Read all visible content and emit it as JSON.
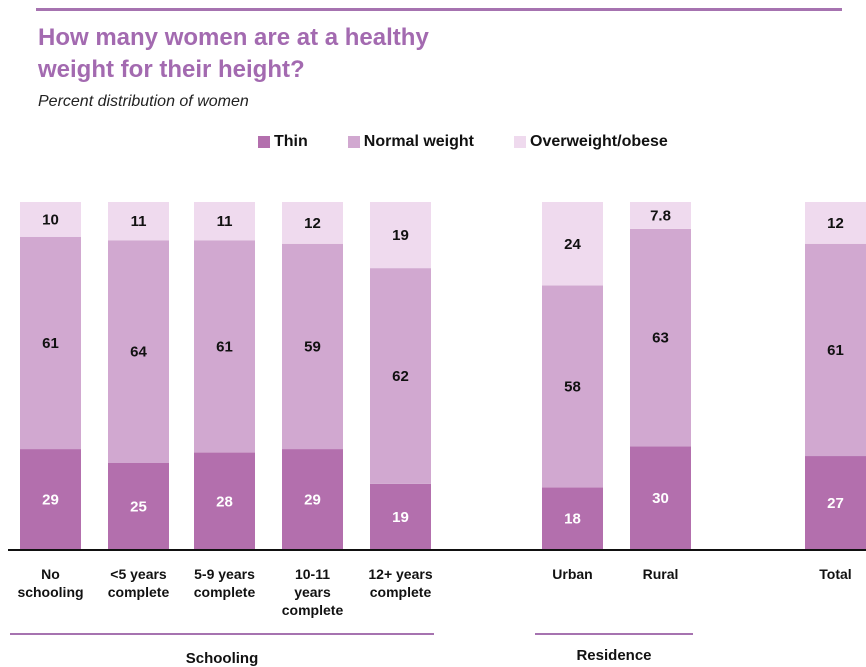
{
  "chart_data": {
    "type": "bar",
    "stacked": true,
    "title": "How many women are at a healthy weight for their height?",
    "subtitle": "Percent distribution of women",
    "legend_position": "top",
    "series": [
      {
        "name": "Thin",
        "color": "#b36fad",
        "values": [
          29,
          25,
          28,
          29,
          19,
          18,
          30,
          27
        ]
      },
      {
        "name": "Normal weight",
        "color": "#d1a8d0",
        "values": [
          61,
          64,
          61,
          59,
          62,
          58,
          63,
          61
        ]
      },
      {
        "name": "Overweight/obese",
        "color": "#efdaee",
        "values": [
          10,
          11,
          11,
          12,
          19,
          24,
          7.8,
          12
        ]
      }
    ],
    "categories": [
      "No schooling",
      "<5 years complete",
      "5-9 years complete",
      "10-11 years complete",
      "12+ years complete",
      "Urban",
      "Rural",
      "Total"
    ],
    "category_lines": [
      [
        "No",
        "schooling"
      ],
      [
        "<5 years",
        "complete"
      ],
      [
        "5-9 years",
        "complete"
      ],
      [
        "10-11",
        "years",
        "complete"
      ],
      [
        "12+ years",
        "complete"
      ],
      [
        "Urban"
      ],
      [
        "Rural"
      ],
      [
        "Total"
      ]
    ],
    "groups": [
      {
        "label": "Schooling"
      },
      {
        "label": "Residence"
      }
    ]
  }
}
